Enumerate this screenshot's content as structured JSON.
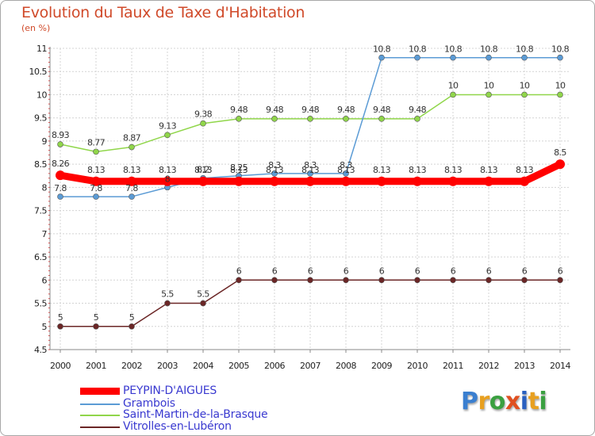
{
  "chart_data": {
    "type": "line",
    "title": "Evolution du Taux de Taxe d'Habitation",
    "subtitle": "(en %)",
    "x": [
      "2000",
      "2001",
      "2002",
      "2003",
      "2004",
      "2005",
      "2006",
      "2007",
      "2008",
      "2009",
      "2010",
      "2011",
      "2012",
      "2013",
      "2014"
    ],
    "ylim": [
      4.5,
      11
    ],
    "yticks": [
      "4.5",
      "5",
      "5.5",
      "6",
      "6.5",
      "7",
      "7.5",
      "8",
      "8.5",
      "9",
      "9.5",
      "10",
      "10.5",
      "11"
    ],
    "grid": true,
    "legend_position": "bottom-left",
    "series": [
      {
        "name": "PEYPIN-D'AIGUES",
        "color": "#ff0000",
        "values": [
          8.26,
          8.13,
          8.13,
          8.13,
          8.13,
          8.13,
          8.13,
          8.13,
          8.13,
          8.13,
          8.13,
          8.13,
          8.13,
          8.13,
          8.5
        ],
        "labels": [
          "8.26",
          "8.13",
          "8.13",
          "8.13",
          "8.13",
          "8.13",
          "8.13",
          "8.13",
          "8.13",
          "8.13",
          "8.13",
          "8.13",
          "8.13",
          "8.13",
          "8.5"
        ]
      },
      {
        "name": "Grambois",
        "color": "#5b9bd5",
        "values": [
          7.8,
          7.8,
          7.8,
          8,
          8.2,
          8.25,
          8.3,
          8.3,
          8.3,
          10.8,
          10.8,
          10.8,
          10.8,
          10.8,
          10.8
        ],
        "labels": [
          "7.8",
          "7.8",
          "7.8",
          "8",
          "8.2",
          "8.25",
          "8.3",
          "8.3",
          "8.3",
          "10.8",
          "10.8",
          "10.8",
          "10.8",
          "10.8",
          "10.8"
        ]
      },
      {
        "name": "Saint-Martin-de-la-Brasque",
        "color": "#90d64a",
        "values": [
          8.93,
          8.77,
          8.87,
          9.13,
          9.38,
          9.48,
          9.48,
          9.48,
          9.48,
          9.48,
          9.48,
          10,
          10,
          10,
          10
        ],
        "labels": [
          "8.93",
          "8.77",
          "8.87",
          "9.13",
          "9.38",
          "9.48",
          "9.48",
          "9.48",
          "9.48",
          "9.48",
          "9.48",
          "10",
          "10",
          "10",
          "10"
        ]
      },
      {
        "name": "Vitrolles-en-Lubéron",
        "color": "#6b2626",
        "values": [
          5,
          5,
          5,
          5.5,
          5.5,
          6,
          6,
          6,
          6,
          6,
          6,
          6,
          6,
          6,
          6
        ],
        "labels": [
          "5",
          "5",
          "5",
          "5.5",
          "5.5",
          "6",
          "6",
          "6",
          "6",
          "6",
          "6",
          "6",
          "6",
          "6",
          "6"
        ]
      }
    ]
  },
  "logo": {
    "text": "Proxiti",
    "colors": [
      "#3a7fd0",
      "#e8a020",
      "#3aa040",
      "#e05020",
      "#2a60c0",
      "#e8a020",
      "#3aa040"
    ]
  }
}
